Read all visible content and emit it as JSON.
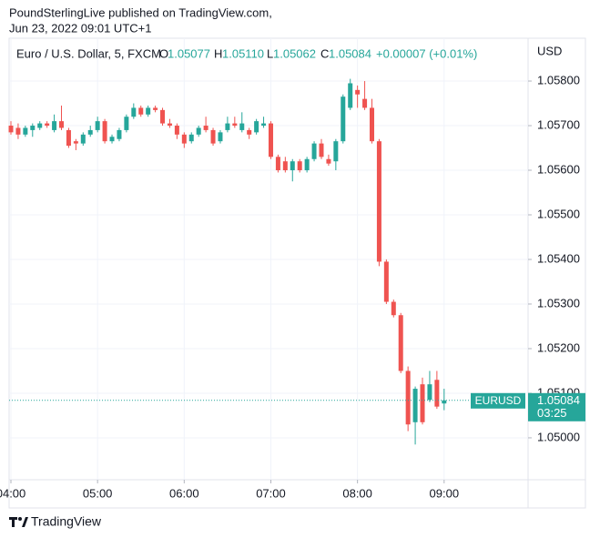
{
  "header": {
    "publisher": "PoundSterlingLive published on TradingView.com,",
    "date": "Jun 23, 2022 09:01 UTC+1"
  },
  "footer": {
    "brand": "TradingView"
  },
  "chart_data": {
    "type": "candlestick",
    "title": "Euro / U.S. Dollar, 5, FXCM",
    "ohlc_legend": [
      {
        "key": "O",
        "value": "1.05077"
      },
      {
        "key": "H",
        "value": "1.05110"
      },
      {
        "key": "L",
        "value": "1.05062"
      },
      {
        "key": "C",
        "value": "1.05084"
      }
    ],
    "change": "+0.00007 (+0.01%)",
    "currency": "USD",
    "price_tag": {
      "symbol": "EURUSD",
      "price": "1.05084",
      "countdown": "03:25"
    },
    "up_color": "#26a69a",
    "down_color": "#ef5350",
    "grid": true,
    "x": [
      "04:00",
      "04:05",
      "04:10",
      "04:15",
      "04:20",
      "04:25",
      "04:30",
      "04:35",
      "04:40",
      "04:45",
      "04:50",
      "04:55",
      "05:00",
      "05:05",
      "05:10",
      "05:15",
      "05:20",
      "05:25",
      "05:30",
      "05:35",
      "05:40",
      "05:45",
      "05:50",
      "05:55",
      "06:00",
      "06:05",
      "06:10",
      "06:15",
      "06:20",
      "06:25",
      "06:30",
      "06:35",
      "06:40",
      "06:45",
      "06:50",
      "06:55",
      "07:00",
      "07:05",
      "07:10",
      "07:15",
      "07:20",
      "07:25",
      "07:30",
      "07:35",
      "07:40",
      "07:45",
      "07:50",
      "07:55",
      "08:00",
      "08:05",
      "08:10",
      "08:15",
      "08:20",
      "08:25",
      "08:30",
      "08:35",
      "08:40",
      "08:45",
      "08:50",
      "08:55",
      "09:00"
    ],
    "open": [
      1.057,
      1.05695,
      1.0568,
      1.0569,
      1.05695,
      1.05705,
      1.0569,
      1.0571,
      1.0569,
      1.05665,
      1.0566,
      1.0568,
      1.0569,
      1.0571,
      1.05665,
      1.0567,
      1.0569,
      1.0572,
      1.0574,
      1.05725,
      1.0574,
      1.05735,
      1.05705,
      1.057,
      1.0568,
      1.05665,
      1.0568,
      1.057,
      1.0569,
      1.05665,
      1.0569,
      1.05705,
      1.0569,
      1.0569,
      1.05685,
      1.057,
      1.05705,
      1.0563,
      1.0562,
      1.056,
      1.0562,
      1.056,
      1.05625,
      1.0566,
      1.05625,
      1.0562,
      1.05665,
      1.0574,
      1.0578,
      1.0576,
      1.0574,
      1.05665,
      1.05395,
      1.05305,
      1.05275,
      1.0515,
      1.05035,
      1.0512,
      1.05085,
      1.0513,
      1.05077
    ],
    "high": [
      1.0571,
      1.05705,
      1.057,
      1.05705,
      1.0571,
      1.0571,
      1.05725,
      1.05745,
      1.05695,
      1.0567,
      1.05685,
      1.057,
      1.0572,
      1.05715,
      1.0568,
      1.05695,
      1.05725,
      1.0575,
      1.05745,
      1.05745,
      1.05745,
      1.0574,
      1.05715,
      1.05705,
      1.05685,
      1.05685,
      1.057,
      1.0572,
      1.05695,
      1.0569,
      1.0572,
      1.0572,
      1.0573,
      1.05695,
      1.05715,
      1.0572,
      1.0571,
      1.05635,
      1.0563,
      1.05625,
      1.05625,
      1.0563,
      1.05665,
      1.0567,
      1.05635,
      1.0567,
      1.0577,
      1.05805,
      1.0579,
      1.058,
      1.0576,
      1.0567,
      1.054,
      1.0531,
      1.0528,
      1.0516,
      1.05115,
      1.05135,
      1.0515,
      1.0515,
      1.0511
    ],
    "low": [
      1.0568,
      1.0567,
      1.05675,
      1.05675,
      1.0569,
      1.05695,
      1.05685,
      1.0569,
      1.0565,
      1.05645,
      1.05655,
      1.05675,
      1.05685,
      1.0566,
      1.0566,
      1.05665,
      1.05685,
      1.05715,
      1.0572,
      1.0572,
      1.0573,
      1.057,
      1.05695,
      1.0567,
      1.0565,
      1.0566,
      1.05675,
      1.05685,
      1.05655,
      1.0566,
      1.05685,
      1.05695,
      1.05685,
      1.0567,
      1.0568,
      1.05695,
      1.05625,
      1.05595,
      1.05595,
      1.05575,
      1.05595,
      1.05595,
      1.0562,
      1.05625,
      1.0561,
      1.056,
      1.0566,
      1.05735,
      1.0574,
      1.05735,
      1.0566,
      1.05385,
      1.053,
      1.0527,
      1.05145,
      1.05015,
      1.04985,
      1.0503,
      1.0508,
      1.05065,
      1.05062
    ],
    "close": [
      1.05685,
      1.0568,
      1.05695,
      1.057,
      1.05705,
      1.057,
      1.0571,
      1.05695,
      1.05655,
      1.0566,
      1.0568,
      1.0569,
      1.0571,
      1.05665,
      1.05675,
      1.0569,
      1.0572,
      1.0574,
      1.05725,
      1.0574,
      1.05735,
      1.05705,
      1.057,
      1.0568,
      1.0566,
      1.0568,
      1.05695,
      1.0569,
      1.0566,
      1.05685,
      1.05705,
      1.057,
      1.05705,
      1.0568,
      1.0571,
      1.05705,
      1.0563,
      1.056,
      1.056,
      1.0562,
      1.056,
      1.05625,
      1.0566,
      1.0563,
      1.05615,
      1.05665,
      1.05765,
      1.05795,
      1.0577,
      1.0574,
      1.05665,
      1.05395,
      1.05305,
      1.05275,
      1.0515,
      1.0503,
      1.0511,
      1.05035,
      1.0512,
      1.0507,
      1.05084
    ],
    "ylim": [
      1.04906,
      1.05896
    ],
    "yticks": [
      {
        "value": 1.05,
        "label": "1.05000"
      },
      {
        "value": 1.051,
        "label": "1.05100"
      },
      {
        "value": 1.052,
        "label": "1.05200"
      },
      {
        "value": 1.053,
        "label": "1.05300"
      },
      {
        "value": 1.054,
        "label": "1.05400"
      },
      {
        "value": 1.055,
        "label": "1.05500"
      },
      {
        "value": 1.056,
        "label": "1.05600"
      },
      {
        "value": 1.057,
        "label": "1.05700"
      },
      {
        "value": 1.058,
        "label": "1.05800"
      }
    ],
    "xticks": [
      "04:00",
      "05:00",
      "06:00",
      "07:00",
      "08:00",
      "09:00"
    ]
  }
}
